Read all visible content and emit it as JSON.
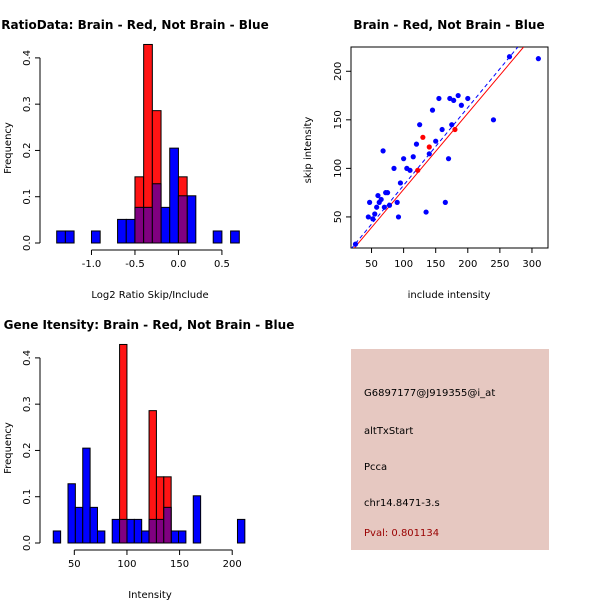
{
  "chart_data": [
    {
      "type": "histogram",
      "title": "RatioData: Brain - Red, Not Brain - Blue",
      "xlabel": "Log2 Ratio Skip/Include",
      "ylabel": "Frequency",
      "xlim": [
        -1.5,
        0.8
      ],
      "ylim": [
        0,
        0.43
      ],
      "xticks": [
        -1.0,
        -0.5,
        0.0,
        0.5
      ],
      "xtick_labels": [
        "-1.0",
        "-0.5",
        "0.0",
        "0.5"
      ],
      "yticks": [
        0,
        0.1,
        0.2,
        0.3,
        0.4
      ],
      "ytick_labels": [
        "0.0",
        "0.1",
        "0.2",
        "0.3",
        "0.4"
      ],
      "series": [
        {
          "name": "Not Brain",
          "color": "#0000ff",
          "bins": [
            {
              "x0": -1.4,
              "x1": -1.3,
              "value": 0.026
            },
            {
              "x0": -1.3,
              "x1": -1.2,
              "value": 0.026
            },
            {
              "x0": -1.0,
              "x1": -0.9,
              "value": 0.026
            },
            {
              "x0": -0.7,
              "x1": -0.6,
              "value": 0.051
            },
            {
              "x0": -0.6,
              "x1": -0.5,
              "value": 0.051
            },
            {
              "x0": -0.5,
              "x1": -0.4,
              "value": 0.077
            },
            {
              "x0": -0.4,
              "x1": -0.3,
              "value": 0.077
            },
            {
              "x0": -0.3,
              "x1": -0.2,
              "value": 0.128
            },
            {
              "x0": -0.2,
              "x1": -0.1,
              "value": 0.077
            },
            {
              "x0": -0.1,
              "x1": 0.0,
              "value": 0.205
            },
            {
              "x0": 0.0,
              "x1": 0.1,
              "value": 0.102
            },
            {
              "x0": 0.1,
              "x1": 0.2,
              "value": 0.102
            },
            {
              "x0": 0.4,
              "x1": 0.5,
              "value": 0.026
            },
            {
              "x0": 0.6,
              "x1": 0.7,
              "value": 0.026
            }
          ]
        },
        {
          "name": "Brain",
          "color": "#ff0000",
          "bins": [
            {
              "x0": -0.5,
              "x1": -0.4,
              "value": 0.143
            },
            {
              "x0": -0.4,
              "x1": -0.3,
              "value": 0.429
            },
            {
              "x0": -0.3,
              "x1": -0.2,
              "value": 0.286
            },
            {
              "x0": -0.2,
              "x1": -0.1,
              "value": 0.0
            },
            {
              "x0": -0.1,
              "x1": 0.0,
              "value": 0.0
            },
            {
              "x0": 0.0,
              "x1": 0.1,
              "value": 0.143
            }
          ]
        }
      ]
    },
    {
      "type": "scatter",
      "title": "Brain - Red, Not Brain - Blue",
      "xlabel": "include intensity",
      "ylabel": "skip intensity",
      "xlim": [
        18,
        325
      ],
      "ylim": [
        18,
        225
      ],
      "xticks": [
        50,
        100,
        150,
        200,
        250,
        300
      ],
      "xtick_labels": [
        "50",
        "100",
        "150",
        "200",
        "250",
        "300"
      ],
      "yticks": [
        50,
        100,
        150,
        200
      ],
      "ytick_labels": [
        "50",
        "100",
        "150",
        "200"
      ],
      "series": [
        {
          "name": "Not Brain",
          "color": "#0000ff",
          "points": [
            [
              25,
              22
            ],
            [
              45,
              50
            ],
            [
              47,
              65
            ],
            [
              52,
              48
            ],
            [
              55,
              53
            ],
            [
              58,
              60
            ],
            [
              60,
              72
            ],
            [
              62,
              65
            ],
            [
              65,
              68
            ],
            [
              68,
              118
            ],
            [
              70,
              60
            ],
            [
              72,
              75
            ],
            [
              75,
              75
            ],
            [
              78,
              62
            ],
            [
              85,
              100
            ],
            [
              90,
              65
            ],
            [
              92,
              50
            ],
            [
              95,
              85
            ],
            [
              100,
              110
            ],
            [
              105,
              100
            ],
            [
              110,
              98
            ],
            [
              115,
              112
            ],
            [
              120,
              125
            ],
            [
              125,
              145
            ],
            [
              135,
              55
            ],
            [
              140,
              115
            ],
            [
              145,
              160
            ],
            [
              150,
              128
            ],
            [
              155,
              172
            ],
            [
              160,
              140
            ],
            [
              165,
              65
            ],
            [
              170,
              110
            ],
            [
              172,
              172
            ],
            [
              175,
              145
            ],
            [
              178,
              170
            ],
            [
              185,
              175
            ],
            [
              190,
              165
            ],
            [
              200,
              172
            ],
            [
              240,
              150
            ],
            [
              265,
              215
            ],
            [
              310,
              213
            ]
          ]
        },
        {
          "name": "Brain",
          "color": "#ff0000",
          "points": [
            [
              122,
              98
            ],
            [
              130,
              132
            ],
            [
              140,
              122
            ],
            [
              180,
              140
            ]
          ]
        }
      ],
      "fit_lines": [
        {
          "name": "Brain fit",
          "color": "#ff0000",
          "from": [
            18,
            14
          ],
          "to": [
            287,
            225
          ]
        },
        {
          "name": "Not Brain fit",
          "color": "#0000ff",
          "style": "dashed",
          "from": [
            18,
            17
          ],
          "to": [
            278,
            225
          ]
        }
      ]
    },
    {
      "type": "histogram",
      "title": "Gene Itensity: Brain - Red, Not Brain - Blue",
      "xlabel": "Intensity",
      "ylabel": "Frequency",
      "xlim": [
        25,
        215
      ],
      "ylim": [
        0,
        0.43
      ],
      "xticks": [
        50,
        100,
        150,
        200
      ],
      "xtick_labels": [
        "50",
        "100",
        "150",
        "200"
      ],
      "yticks": [
        0,
        0.1,
        0.2,
        0.3,
        0.4
      ],
      "ytick_labels": [
        "0.0",
        "0.1",
        "0.2",
        "0.3",
        "0.4"
      ],
      "series": [
        {
          "name": "Not Brain",
          "color": "#0000ff",
          "bins": [
            {
              "x0": 30,
              "x1": 37,
              "value": 0.026
            },
            {
              "x0": 44,
              "x1": 51,
              "value": 0.128
            },
            {
              "x0": 51,
              "x1": 58,
              "value": 0.077
            },
            {
              "x0": 58,
              "x1": 65,
              "value": 0.205
            },
            {
              "x0": 65,
              "x1": 72,
              "value": 0.077
            },
            {
              "x0": 72,
              "x1": 79,
              "value": 0.026
            },
            {
              "x0": 86,
              "x1": 93,
              "value": 0.051
            },
            {
              "x0": 93,
              "x1": 100,
              "value": 0.051
            },
            {
              "x0": 100,
              "x1": 107,
              "value": 0.051
            },
            {
              "x0": 107,
              "x1": 114,
              "value": 0.051
            },
            {
              "x0": 114,
              "x1": 121,
              "value": 0.026
            },
            {
              "x0": 121,
              "x1": 128,
              "value": 0.051
            },
            {
              "x0": 128,
              "x1": 135,
              "value": 0.051
            },
            {
              "x0": 135,
              "x1": 142,
              "value": 0.077
            },
            {
              "x0": 142,
              "x1": 149,
              "value": 0.026
            },
            {
              "x0": 149,
              "x1": 156,
              "value": 0.026
            },
            {
              "x0": 163,
              "x1": 170,
              "value": 0.102
            },
            {
              "x0": 205,
              "x1": 212,
              "value": 0.051
            }
          ]
        },
        {
          "name": "Brain",
          "color": "#ff0000",
          "bins": [
            {
              "x0": 93,
              "x1": 100,
              "value": 0.429
            },
            {
              "x0": 121,
              "x1": 128,
              "value": 0.286
            },
            {
              "x0": 128,
              "x1": 135,
              "value": 0.143
            },
            {
              "x0": 135,
              "x1": 142,
              "value": 0.143
            }
          ]
        }
      ]
    }
  ],
  "info_panel": {
    "background": "#e6c8c1",
    "lines": [
      "G6897177@J919355@i_at",
      "altTxStart",
      "Pcca",
      "chr14.8471-3.s"
    ],
    "pval_text": "Pval: 0.801134",
    "pval_color": "#990000"
  },
  "colors": {
    "blue": "#0000ff",
    "red": "#ff0000",
    "overlap": "#800080"
  }
}
